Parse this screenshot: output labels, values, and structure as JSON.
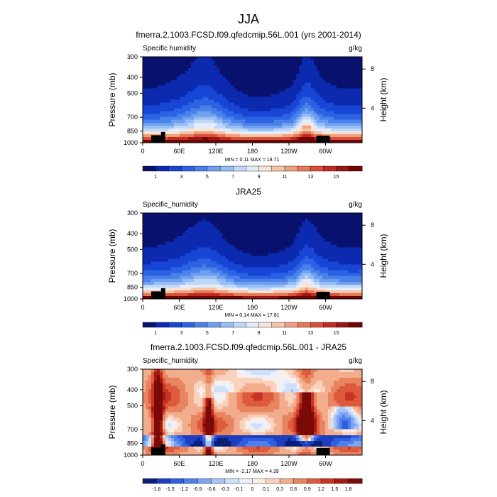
{
  "chart_data": {
    "type": "heatmap",
    "title": "JJA",
    "panels": [
      {
        "title": "fmerra.2.1003.FCSD.f09.qfedcmip.56L.001 (yrs 2001-2014)",
        "left_label": "Specific humidity",
        "right_label": "g/kg",
        "ylabel": "Pressure (mb)",
        "y2label": "Height (km)",
        "xticks": [
          "0",
          "60E",
          "120E",
          "180",
          "120W",
          "60W"
        ],
        "yticks": [
          "300",
          "400",
          "500",
          "700",
          "850",
          "1000"
        ],
        "y2ticks": [
          "8",
          "4"
        ],
        "stats": "MIN =   0.11  MAX =  18.71",
        "colorbar_labels": [
          "1",
          "3",
          "5",
          "7",
          "9",
          "11",
          "13",
          "15"
        ],
        "field": "q"
      },
      {
        "title": "JRA25",
        "left_label": "Specific_humidity",
        "right_label": "g/kg",
        "ylabel": "Pressure (mb)",
        "y2label": "Height (km)",
        "xticks": [
          "0",
          "60E",
          "120E",
          "180",
          "120W",
          "60W"
        ],
        "yticks": [
          "300",
          "400",
          "500",
          "700",
          "850",
          "1000"
        ],
        "y2ticks": [
          "8",
          "4"
        ],
        "stats": "MIN =   0.14  MAX =  17.81",
        "colorbar_labels": [
          "1",
          "3",
          "5",
          "7",
          "9",
          "11",
          "13",
          "15"
        ],
        "field": "q_obs"
      },
      {
        "title": "fmerra.2.1003.FCSD.f09.qfedcmip.56L.001 - JRA25",
        "left_label": "Specific_humidity",
        "right_label": "g/kg",
        "ylabel": "Pressure (mb)",
        "y2label": "Height (km)",
        "xticks": [
          "0",
          "60E",
          "120E",
          "180",
          "120W",
          "60W"
        ],
        "yticks": [
          "300",
          "400",
          "500",
          "700",
          "850",
          "1000"
        ],
        "y2ticks": [
          "8",
          "4"
        ],
        "stats": "MIN =  -2.17  MAX =   4.39",
        "colorbar_labels": [
          "-1.8",
          "-1.5",
          "-1.2",
          "-0.9",
          "-0.6",
          "-0.3",
          "-0.1",
          "0",
          "0.1",
          "0.3",
          "0.6",
          "0.9",
          "1.2",
          "1.5",
          "1.8"
        ],
        "field": "diff"
      }
    ],
    "x_range_lon": [
      0,
      360
    ],
    "p_range_mb": [
      1000,
      300
    ],
    "colors": {
      "full_palette": [
        "#08126e",
        "#0c2ab0",
        "#1746d6",
        "#2b63e4",
        "#4a82ea",
        "#6e9ff0",
        "#96bdf4",
        "#bfd8f8",
        "#e3edfb",
        "#fbe3d6",
        "#f7c4a8",
        "#f0a07c",
        "#e77855",
        "#d9503a",
        "#c22b22",
        "#9c1510",
        "#6e0606"
      ],
      "diff_palette": [
        "#0a1f7a",
        "#1c3fc0",
        "#2f5fe0",
        "#4f80ea",
        "#7aa3f0",
        "#a7c4f5",
        "#cfdff9",
        "#e9f1fc",
        "#fbeee6",
        "#f8d2bd",
        "#f2ad8d",
        "#e98461",
        "#dd5a3c",
        "#c83324",
        "#a41a12",
        "#7a0a08"
      ],
      "terrain": "#000000"
    }
  }
}
